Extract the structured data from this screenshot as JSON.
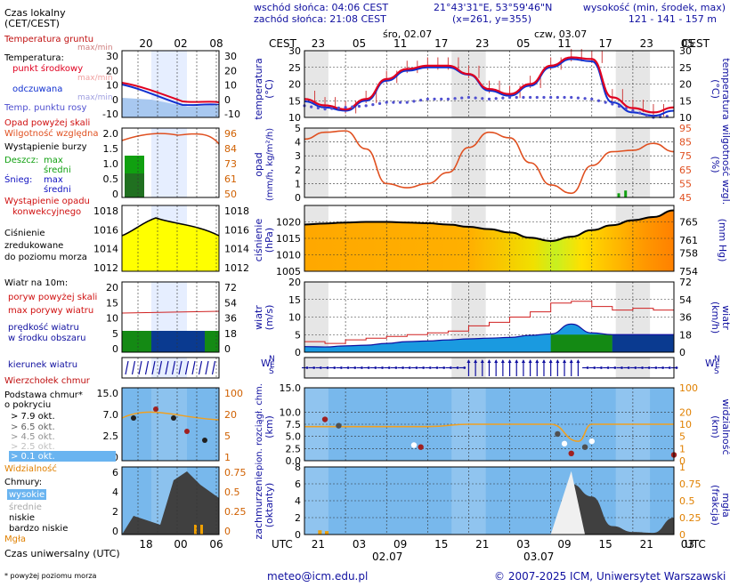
{
  "header": {
    "sunrise": "wschód słońca: 04:06 CEST",
    "sunset": "zachód słońca: 21:08 CEST",
    "coords": "21°43'31\"E, 53°59'46\"N",
    "grid": "(x=261, y=355)",
    "height_label": "wysokość (min, środek, max)",
    "height_values": "121 - 141 - 157 m",
    "day1": "śro, 02.07",
    "day2": "czw, 03.07",
    "tz_left": "CEST",
    "tz_right": "CEST",
    "cest_hours": [
      "23",
      "05",
      "11",
      "17",
      "23",
      "05",
      "11",
      "17",
      "23",
      "05"
    ],
    "utc_hours": [
      "21",
      "03",
      "09",
      "15",
      "21",
      "03",
      "09",
      "15",
      "21",
      "03"
    ],
    "utc_left": "UTC",
    "utc_right": "UTC",
    "date1": "02.07",
    "date2": "03.07"
  },
  "legend": {
    "local_time": "Czas lokalny",
    "local_time_sub": "(CET/CEST)",
    "local_hours": [
      "20",
      "02",
      "08"
    ],
    "soil_temp": "Temperatura gruntu",
    "maxmin": "max/min",
    "temperature": "Temperatura:",
    "midpoint": "punkt środkowy",
    "maxmin2": "max/min",
    "feels": "odczuwana",
    "feels_maxmin": "max/min",
    "dewpoint": "Temp. punktu rosy",
    "precip_above": "Opad powyżej skali",
    "humidity": "Wilgotność względna",
    "storm": "Wystąpienie burzy",
    "rain": "Deszcz:",
    "rain_max": "max",
    "rain_mean": "średni",
    "snow": "Śnieg:",
    "snow_max": "max",
    "snow_mean": "średni",
    "conv": "Wystąpienie opadu",
    "conv2": "konwekcyjnego",
    "pressure1": "Ciśnienie",
    "pressure2": "zredukowane",
    "pressure3": "do poziomu morza",
    "wind10": "Wiatr na 10m:",
    "gust_above": "poryw powyżej skali",
    "gust_max": "max porywy wiatru",
    "wind_speed1": "prędkość wiatru",
    "wind_speed2": "w środku obszaru",
    "wind_dir": "kierunek wiatru",
    "cloud_top": "Wierzchołek chmur",
    "cloud_base1": "Podstawa chmur*",
    "cloud_base2": "o pokryciu",
    "okt79": "> 7.9 okt.",
    "okt65": "> 6.5 okt.",
    "okt45": "> 4.5 okt.",
    "okt25": "> 2.5 okt.",
    "okt01": "> 0.1 okt.",
    "visibility": "Widzialność",
    "clouds": "Chmury:",
    "high": "wysokie",
    "mid": "średnie",
    "low": "niskie",
    "vlow": "bardzo niskie",
    "fog": "Mgła",
    "utc": "Czas uniwersalny (UTC)",
    "utc_hours": [
      "18",
      "00",
      "06"
    ],
    "footnote": "* powyżej poziomu morza"
  },
  "axes": {
    "temp_left": "temperatura",
    "temp_left_unit": "(°C)",
    "temp_right": "(°C)",
    "temp_right2": "temperatura",
    "precip": "opad",
    "precip_unit": "(mm/h, kg/m²/h)",
    "humidity": "wilgotność wzgl.",
    "humidity_unit": "(%)",
    "pressure": "ciśnienie",
    "pressure_unit": "(hPa)",
    "pressure_r": "(mm Hg)",
    "wind": "wiatr",
    "wind_unit": "(m/s)",
    "wind_r": "(km/h)",
    "cloud_left": "pion. rozciągł. chm.",
    "cloud_left_unit": "(km)",
    "vis": "widzialność",
    "vis_unit": "(km)",
    "cover": "zachmurzenie",
    "cover_unit": "(oktanty)",
    "fog": "mgła",
    "fog_unit": "(frakcja)",
    "compass_n": "N",
    "compass_s": "S",
    "compass_w": "W",
    "compass_e": "E"
  },
  "footer": {
    "email": "meteo@icm.edu.pl",
    "copyright": "© 2007-2025 ICM, Uniwersytet Warszawski"
  },
  "chart_data": {
    "type": "line",
    "time_axis": "hours from 02.07 21:00 CEST (step 3h)",
    "panels": [
      {
        "name": "temperature",
        "ylim": [
          10,
          30
        ],
        "ticks": [
          10,
          15,
          20,
          25,
          30
        ],
        "series": [
          {
            "name": "punkt środkowy",
            "color": "#e00020",
            "x": [
              0,
              3,
              6,
              9,
              12,
              15,
              18,
              21,
              24,
              27,
              30,
              33,
              36,
              39,
              42,
              45,
              48,
              51,
              54
            ],
            "values": [
              15.5,
              13.6,
              12.4,
              15.5,
              21.5,
              24.5,
              25.5,
              25.5,
              23.0,
              18.5,
              17.0,
              20.0,
              25.5,
              28.0,
              27.5,
              16.0,
              12.8,
              11.5,
              13.0
            ]
          },
          {
            "name": "odczuwana",
            "color": "#1030d0",
            "x": [
              0,
              3,
              6,
              9,
              12,
              15,
              18,
              21,
              24,
              27,
              30,
              33,
              36,
              39,
              42,
              45,
              48,
              51,
              54
            ],
            "values": [
              14.8,
              13.0,
              12.0,
              15.0,
              21.0,
              24.0,
              25.0,
              25.0,
              22.8,
              18.0,
              16.5,
              19.5,
              25.0,
              27.5,
              26.8,
              14.5,
              11.5,
              10.5,
              12.0
            ]
          },
          {
            "name": "Temp. punktu rosy",
            "color": "#5050d0",
            "x": [
              0,
              3,
              6,
              9,
              12,
              15,
              18,
              21,
              24,
              27,
              30,
              33,
              36,
              39,
              42,
              45,
              48,
              51,
              54
            ],
            "values": [
              13.5,
              12.5,
              13.0,
              13.5,
              14.5,
              14.5,
              15.5,
              15.5,
              16.0,
              15.5,
              16.0,
              16.0,
              16.0,
              16.0,
              15.5,
              14.0,
              12.0,
              10.0,
              10.5
            ]
          }
        ]
      },
      {
        "name": "precipitation_humidity",
        "precip_ylim": [
          0,
          5
        ],
        "humidity_ylim": [
          45,
          95
        ],
        "humidity_ticks": [
          45,
          55,
          65,
          75,
          85,
          95
        ],
        "series": [
          {
            "name": "Wilgotność względna",
            "color": "#e05020",
            "x": [
              0,
              3,
              6,
              9,
              12,
              15,
              18,
              21,
              24,
              27,
              30,
              33,
              36,
              39,
              42,
              45,
              48,
              51,
              54
            ],
            "values": [
              87,
              92,
              93,
              80,
              55,
              52,
              55,
              63,
              81,
              92,
              88,
              70,
              54,
              48,
              68,
              78,
              79,
              84,
              78
            ]
          },
          {
            "name": "Deszcz",
            "color": "#10a010",
            "x": [
              46,
              47
            ],
            "values": [
              0.3,
              0.5
            ]
          }
        ]
      },
      {
        "name": "pressure",
        "ylim": [
          1005,
          1025
        ],
        "ticks": [
          1005,
          1010,
          1015,
          1020
        ],
        "series": [
          {
            "name": "Ciśnienie",
            "color": "#000000",
            "x": [
              0,
              3,
              6,
              9,
              12,
              15,
              18,
              21,
              24,
              27,
              30,
              33,
              36,
              39,
              42,
              45,
              48,
              51,
              54
            ],
            "values": [
              1019.2,
              1019.5,
              1019.8,
              1020.0,
              1020.0,
              1019.8,
              1019.6,
              1019.2,
              1018.5,
              1017.8,
              1016.8,
              1015.2,
              1014.2,
              1015.5,
              1017.5,
              1019.0,
              1020.5,
              1021.5,
              1023.5
            ]
          }
        ]
      },
      {
        "name": "wind",
        "ylim": [
          0,
          20
        ],
        "ticks": [
          0,
          5,
          10,
          15,
          20
        ],
        "series": [
          {
            "name": "max porywy wiatru",
            "color": "#d02020",
            "x": [
              0,
              3,
              6,
              9,
              12,
              15,
              18,
              21,
              24,
              27,
              30,
              33,
              36,
              39,
              42,
              45,
              48,
              51,
              54
            ],
            "values": [
              3.0,
              2.5,
              3.5,
              4.0,
              4.5,
              5.0,
              5.5,
              6.0,
              7.5,
              8.5,
              10.0,
              11.5,
              14.0,
              14.5,
              13.0,
              12.0,
              12.5,
              12.0,
              11.0
            ]
          },
          {
            "name": "prędkość wiatru",
            "color": "#1010a0",
            "x": [
              0,
              3,
              6,
              9,
              12,
              15,
              18,
              21,
              24,
              27,
              30,
              33,
              36,
              39,
              42,
              45,
              48,
              51,
              54
            ],
            "values": [
              1.6,
              1.5,
              1.8,
              2.0,
              2.5,
              3.0,
              3.2,
              3.5,
              3.8,
              4.0,
              4.2,
              4.8,
              5.2,
              8.0,
              5.5,
              5.0,
              5.0,
              5.0,
              5.0
            ]
          }
        ]
      },
      {
        "name": "cloud_visibility",
        "ylim": [
          0,
          15
        ],
        "ticks": [
          0,
          2.5,
          5,
          7.5,
          10,
          15
        ],
        "series": [
          {
            "name": "Widzialność",
            "color": "#f0a020",
            "x": [
              0,
              6,
              12,
              18,
              24,
              30,
              36,
              40,
              42,
              45,
              48,
              54
            ],
            "values": [
              7.0,
              7.0,
              7.0,
              7.0,
              7.5,
              7.5,
              7.5,
              4.0,
              7.5,
              7.5,
              7.5,
              7.5
            ]
          }
        ]
      },
      {
        "name": "cloud_cover",
        "ylim": [
          0,
          8
        ],
        "ticks": [
          0,
          2,
          4,
          6,
          8
        ],
        "series": [
          {
            "name": "niskie",
            "color": "#404040",
            "x": [
              0,
              24,
              36,
              39,
              42,
              45,
              48,
              51,
              54
            ],
            "values": [
              0,
              0,
              0,
              6.0,
              4.5,
              1.0,
              0.3,
              0.2,
              2.0
            ]
          }
        ]
      }
    ]
  }
}
